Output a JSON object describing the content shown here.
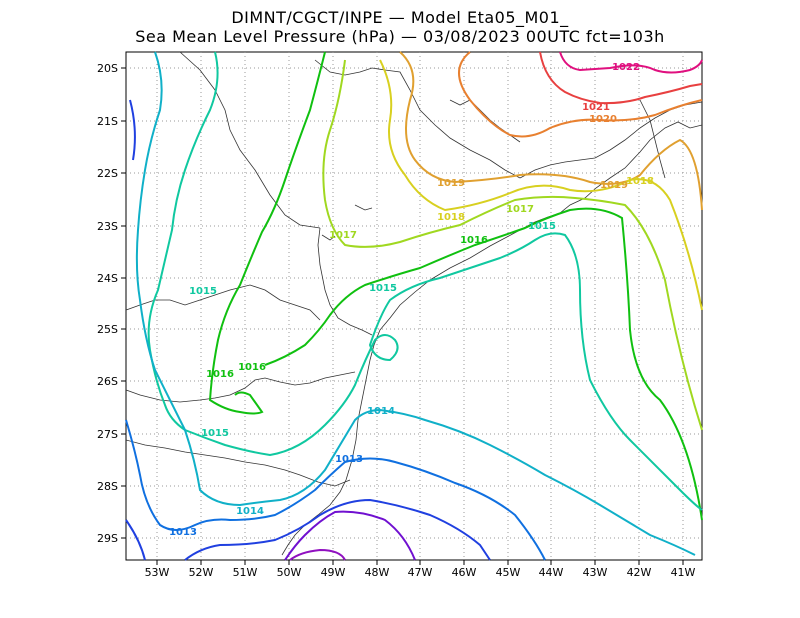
{
  "title": {
    "line1": "DIMNT/CGCT/INPE —  Model Eta05_M01_",
    "line2": "Sea Mean Level Pressure (hPa) — 03/08/2023 00UTC fct=103h"
  },
  "axes": {
    "lat_labels": [
      "20S",
      "21S",
      "22S",
      "23S",
      "24S",
      "25S",
      "26S",
      "27S",
      "28S",
      "29S"
    ],
    "lon_labels": [
      "53W",
      "52W",
      "51W",
      "50W",
      "49W",
      "48W",
      "47W",
      "46W",
      "45W",
      "44W",
      "43W",
      "42W",
      "41W"
    ],
    "lat_range": [
      -29.4,
      -19.7
    ],
    "lon_range": [
      -53.6,
      -40.5
    ]
  },
  "isobars": [
    {
      "value": "1022",
      "color": "#e0107f"
    },
    {
      "value": "1021",
      "color": "#e84040"
    },
    {
      "value": "1020",
      "color": "#e88030"
    },
    {
      "value": "1019",
      "color": "#e0a030"
    },
    {
      "value": "1018",
      "color": "#d8d020"
    },
    {
      "value": "1017",
      "color": "#a0d820"
    },
    {
      "value": "1016",
      "color": "#10c010"
    },
    {
      "value": "1015",
      "color": "#10c8a0"
    },
    {
      "value": "1014",
      "color": "#10b0c8"
    },
    {
      "value": "1013",
      "color": "#1070e0"
    }
  ],
  "contour_labels": [
    {
      "text": "1022",
      "color": "#e0107f"
    },
    {
      "text": "1021",
      "color": "#e84040"
    },
    {
      "text": "1020",
      "color": "#e88030"
    },
    {
      "text": "1019",
      "color": "#e0a030"
    },
    {
      "text": "1019",
      "color": "#e0a030"
    },
    {
      "text": "1018",
      "color": "#d8d020"
    },
    {
      "text": "1018",
      "color": "#d8d020"
    },
    {
      "text": "1017",
      "color": "#a0d820"
    },
    {
      "text": "1017",
      "color": "#a0d820"
    },
    {
      "text": "1016",
      "color": "#10c010"
    },
    {
      "text": "1016",
      "color": "#10c010"
    },
    {
      "text": "1016",
      "color": "#10c010"
    },
    {
      "text": "1015",
      "color": "#10c8a0"
    },
    {
      "text": "1015",
      "color": "#10c8a0"
    },
    {
      "text": "1015",
      "color": "#10c8a0"
    },
    {
      "text": "1015",
      "color": "#10c8a0"
    },
    {
      "text": "1014",
      "color": "#10b0c8"
    },
    {
      "text": "1014",
      "color": "#10b0c8"
    },
    {
      "text": "1013",
      "color": "#1070e0"
    },
    {
      "text": "1013",
      "color": "#1070e0"
    }
  ]
}
